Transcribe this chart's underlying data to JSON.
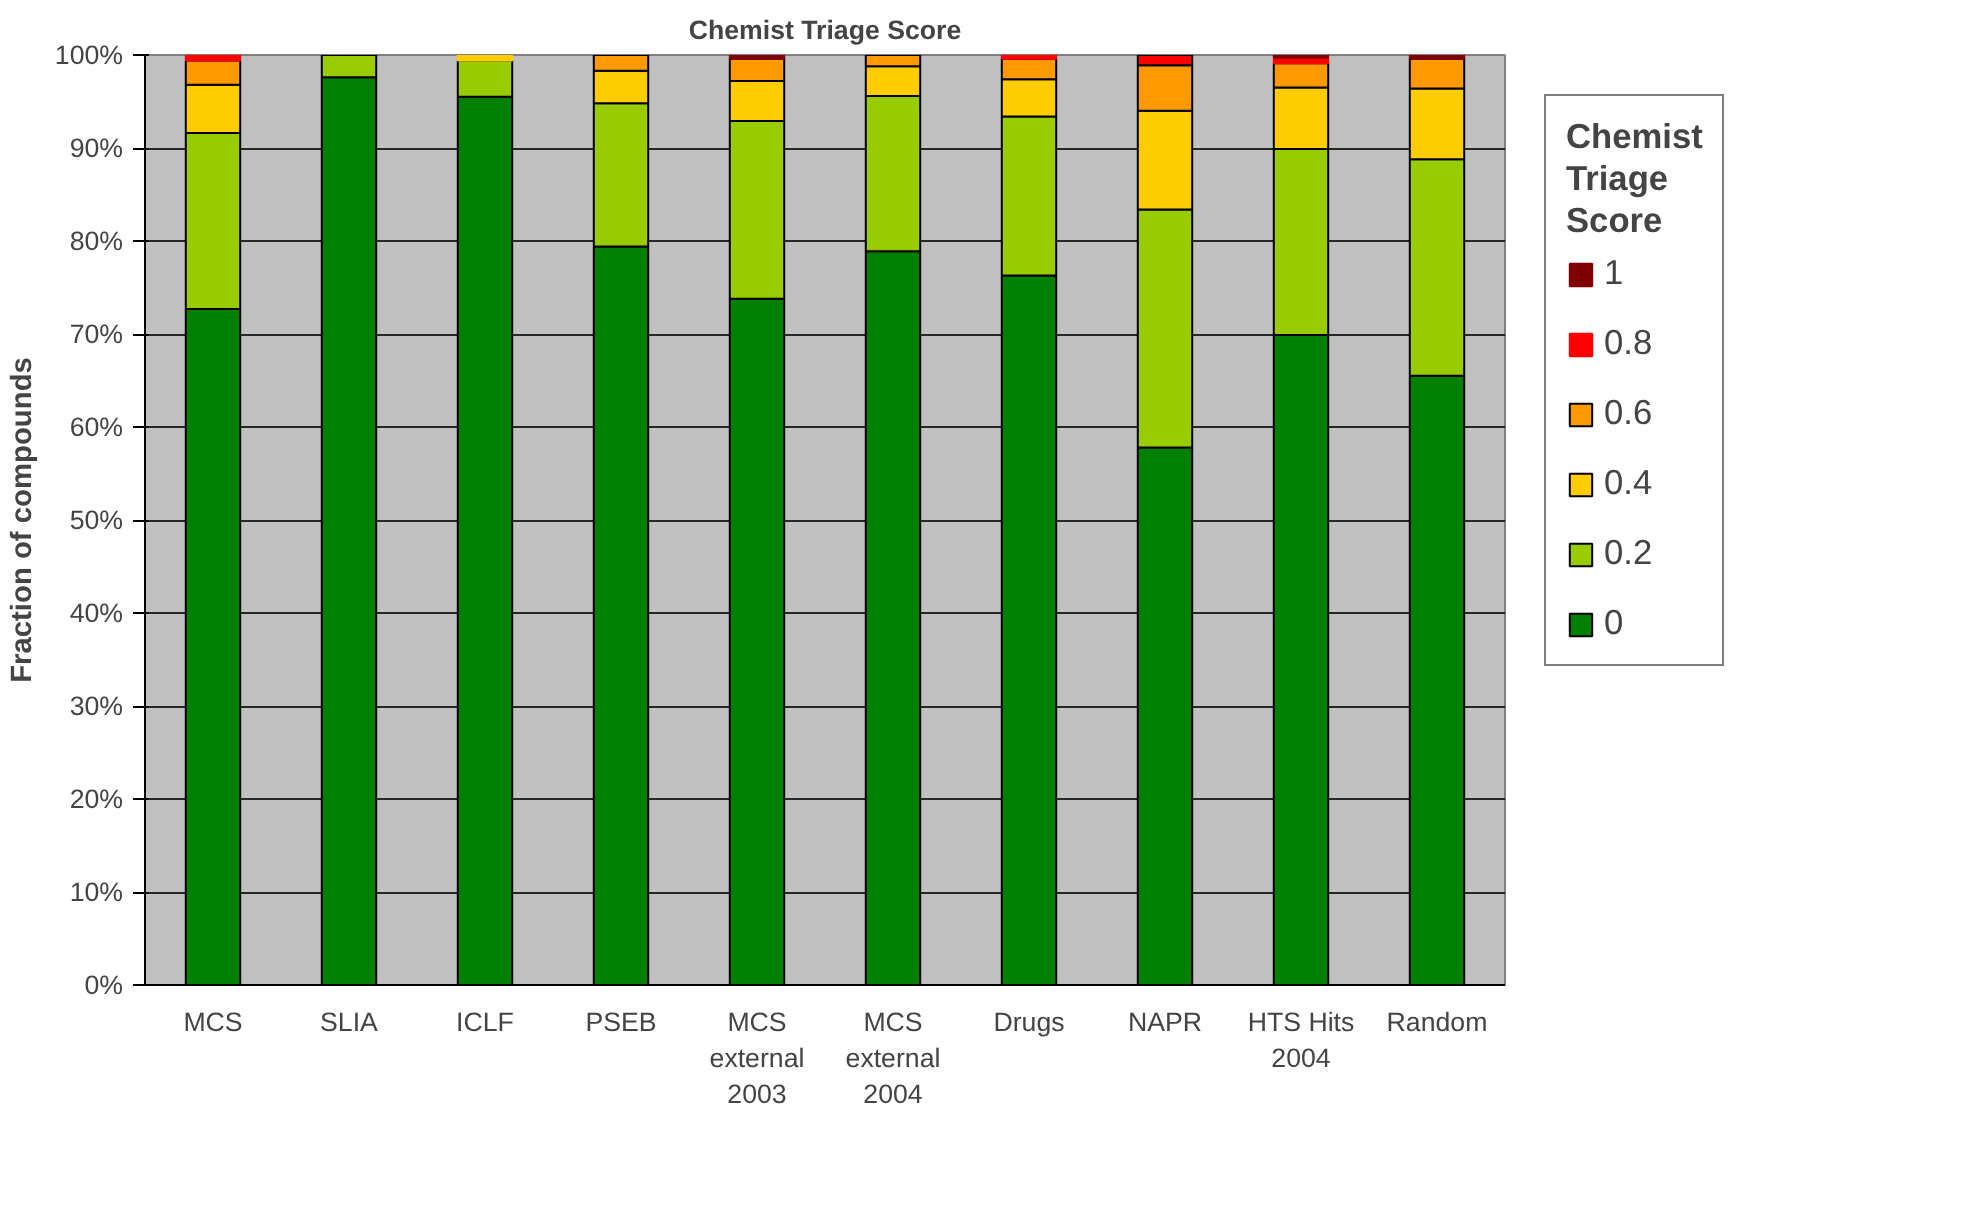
{
  "chart_data": {
    "type": "bar",
    "title": "Chemist Triage Score",
    "ylabel": "Fraction of compounds",
    "legend_title": "Chemist Triage Score",
    "stacked": true,
    "legend": "right",
    "grid": "y",
    "categories": [
      "MCS",
      "SLIA",
      "ICLF",
      "PSEB",
      "MCS\nexternal\n2003",
      "MCS\nexternal\n2004",
      "Drugs",
      "NAPR",
      "HTS Hits\n2004",
      "Random"
    ],
    "ylim": [
      0,
      100
    ],
    "yticks": [
      {
        "value": 0,
        "label": "0%"
      },
      {
        "value": 10,
        "label": "10%"
      },
      {
        "value": 20,
        "label": "20%"
      },
      {
        "value": 30,
        "label": "30%"
      },
      {
        "value": 40,
        "label": "40%"
      },
      {
        "value": 50,
        "label": "50%"
      },
      {
        "value": 60,
        "label": "60%"
      },
      {
        "value": 70,
        "label": "70%"
      },
      {
        "value": 80,
        "label": "80%"
      },
      {
        "value": 90,
        "label": "90%"
      },
      {
        "value": 100,
        "label": "100%"
      }
    ],
    "series": [
      {
        "name": "0",
        "color": "#008000",
        "values": [
          72.7,
          97.6,
          95.5,
          79.4,
          73.8,
          78.9,
          76.3,
          57.8,
          69.9,
          65.5
        ]
      },
      {
        "name": "0.2",
        "color": "#99cc00",
        "values": [
          18.9,
          2.4,
          3.9,
          15.4,
          19.1,
          16.7,
          17.1,
          25.6,
          20.0,
          23.3
        ]
      },
      {
        "name": "0.4",
        "color": "#ffcc00",
        "values": [
          5.2,
          0,
          0.6,
          3.5,
          4.3,
          3.2,
          4.0,
          10.6,
          6.6,
          7.6
        ]
      },
      {
        "name": "0.6",
        "color": "#ff9900",
        "values": [
          2.6,
          0,
          0,
          1.7,
          2.4,
          1.2,
          2.2,
          4.9,
          2.6,
          3.2
        ]
      },
      {
        "name": "0.8",
        "color": "#ff0000",
        "values": [
          0.6,
          0,
          0,
          0,
          0,
          0,
          0.4,
          1.1,
          0.6,
          0
        ]
      },
      {
        "name": "1",
        "color": "#800000",
        "values": [
          0,
          0,
          0,
          0,
          0.4,
          0,
          0,
          0,
          0.3,
          0.4
        ]
      }
    ]
  }
}
